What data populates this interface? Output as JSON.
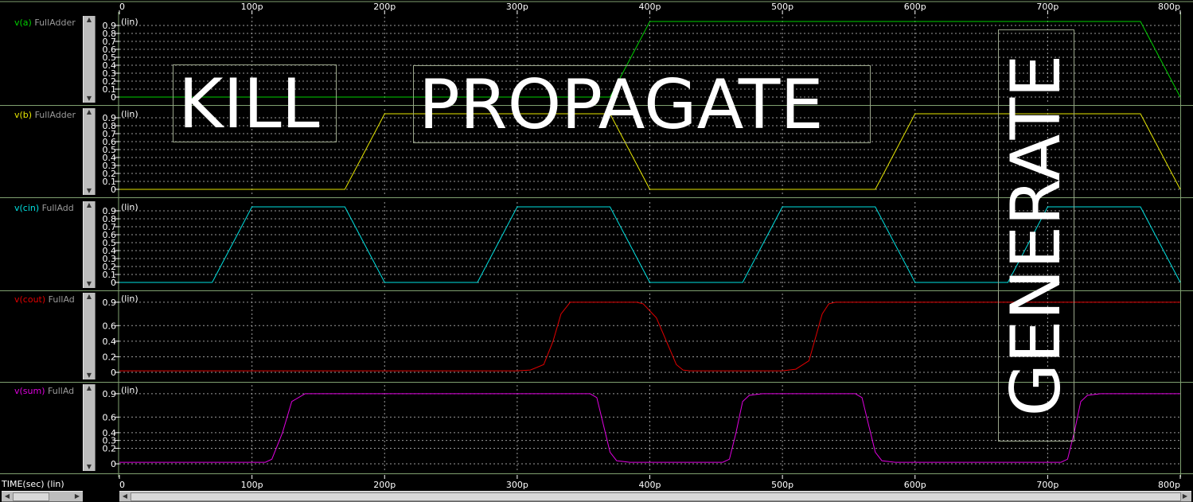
{
  "chart_data": {
    "type": "line",
    "xlabel": "TIME(sec) (lin)",
    "x_tick_labels": [
      "0",
      "100p",
      "200p",
      "300p",
      "400p",
      "500p",
      "600p",
      "700p",
      "800p"
    ],
    "x_range_ps": [
      0,
      800
    ],
    "panels": [
      {
        "label": "v(a)",
        "instance": "FullAdder",
        "color": "#00d000",
        "scale_label": "(lin)",
        "ytick_labels": [
          "0.9",
          "0.8",
          "0.7",
          "0.6",
          "0.5",
          "0.4",
          "0.3",
          "0.2",
          "0.1",
          "0"
        ],
        "ytick_values": [
          0.9,
          0.8,
          0.7,
          0.6,
          0.5,
          0.4,
          0.3,
          0.2,
          0.1,
          0
        ],
        "ylim": [
          0,
          0.95
        ],
        "x_ps": [
          0,
          370,
          400,
          770,
          800
        ],
        "y": [
          0,
          0,
          0.95,
          0.95,
          0
        ]
      },
      {
        "label": "v(b)",
        "instance": "FullAdder",
        "color": "#e6e600",
        "scale_label": "(lin)",
        "ytick_labels": [
          "0.9",
          "0.8",
          "0.7",
          "0.6",
          "0.5",
          "0.4",
          "0.3",
          "0.2",
          "0.1",
          "0"
        ],
        "ytick_values": [
          0.9,
          0.8,
          0.7,
          0.6,
          0.5,
          0.4,
          0.3,
          0.2,
          0.1,
          0
        ],
        "ylim": [
          0,
          0.95
        ],
        "x_ps": [
          0,
          170,
          200,
          370,
          400,
          570,
          600,
          770,
          800
        ],
        "y": [
          0,
          0,
          0.95,
          0.95,
          0,
          0,
          0.95,
          0.95,
          0
        ]
      },
      {
        "label": "v(cin)",
        "instance": "FullAdd",
        "color": "#00e0e0",
        "scale_label": "(lin)",
        "ytick_labels": [
          "0.9",
          "0.8",
          "0.7",
          "0.6",
          "0.5",
          "0.4",
          "0.3",
          "0.2",
          "0.1",
          "0"
        ],
        "ytick_values": [
          0.9,
          0.8,
          0.7,
          0.6,
          0.5,
          0.4,
          0.3,
          0.2,
          0.1,
          0
        ],
        "ylim": [
          0,
          0.95
        ],
        "x_ps": [
          0,
          70,
          100,
          170,
          200,
          270,
          300,
          370,
          400,
          470,
          500,
          570,
          600,
          670,
          700,
          770,
          800
        ],
        "y": [
          0,
          0,
          0.95,
          0.95,
          0,
          0,
          0.95,
          0.95,
          0,
          0,
          0.95,
          0.95,
          0,
          0,
          0.95,
          0.95,
          0
        ]
      },
      {
        "label": "v(cout)",
        "instance": "FullAd",
        "color": "#e00000",
        "scale_label": "(lin)",
        "ytick_labels": [
          "0.9",
          "0.6",
          "0.4",
          "0.2",
          "0"
        ],
        "ytick_values": [
          0.9,
          0.6,
          0.4,
          0.2,
          0
        ],
        "ylim": [
          -0.02,
          0.95
        ],
        "x_ps": [
          0,
          300,
          310,
          320,
          327,
          333,
          340,
          390,
          395,
          405,
          415,
          420,
          425,
          430,
          500,
          510,
          520,
          525,
          530,
          535,
          540,
          800
        ],
        "y": [
          0.02,
          0.02,
          0.03,
          0.1,
          0.4,
          0.75,
          0.9,
          0.9,
          0.88,
          0.7,
          0.3,
          0.1,
          0.03,
          0.02,
          0.02,
          0.04,
          0.15,
          0.45,
          0.75,
          0.88,
          0.9,
          0.9
        ]
      },
      {
        "label": "v(sum)",
        "instance": "FullAd",
        "color": "#e000e0",
        "scale_label": "(lin)",
        "ytick_labels": [
          "0.9",
          "0.6",
          "0.4",
          "0.3",
          "0.2",
          "0"
        ],
        "ytick_values": [
          0.9,
          0.6,
          0.4,
          0.3,
          0.2,
          0
        ],
        "ylim": [
          -0.02,
          0.95
        ],
        "x_ps": [
          0,
          110,
          115,
          123,
          130,
          140,
          355,
          360,
          365,
          370,
          375,
          385,
          455,
          460,
          465,
          470,
          475,
          485,
          555,
          560,
          565,
          570,
          575,
          585,
          710,
          715,
          720,
          725,
          730,
          740,
          800
        ],
        "y": [
          0.02,
          0.02,
          0.06,
          0.4,
          0.8,
          0.9,
          0.9,
          0.85,
          0.5,
          0.15,
          0.04,
          0.02,
          0.02,
          0.06,
          0.4,
          0.8,
          0.88,
          0.9,
          0.9,
          0.85,
          0.5,
          0.15,
          0.04,
          0.02,
          0.02,
          0.06,
          0.4,
          0.8,
          0.88,
          0.9,
          0.9
        ]
      }
    ],
    "annotations": [
      "KILL",
      "PROPAGATE",
      "GENERATE"
    ],
    "grid": true
  }
}
